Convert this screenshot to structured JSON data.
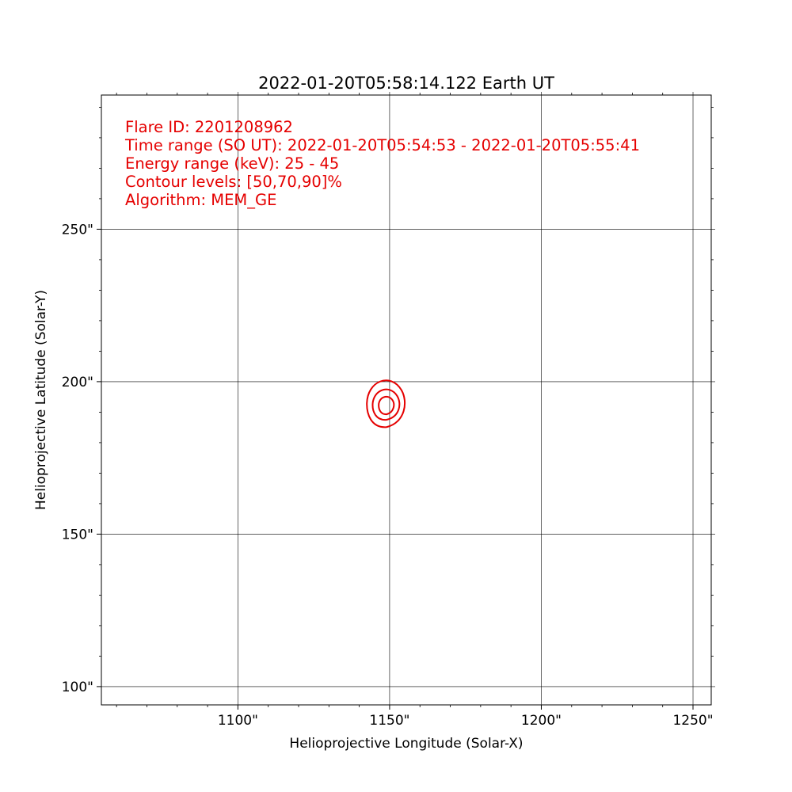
{
  "chart_data": {
    "type": "contour",
    "title": "2022-01-20T05:58:14.122   Earth UT",
    "xlabel": "Helioprojective Longitude (Solar-X)",
    "ylabel": "Helioprojective Latitude (Solar-Y)",
    "xlim": [
      1055,
      1256
    ],
    "ylim": [
      94,
      294
    ],
    "x_ticks": [
      {
        "value": 1100,
        "label": "1100\""
      },
      {
        "value": 1150,
        "label": "1150\""
      },
      {
        "value": 1200,
        "label": "1200\""
      },
      {
        "value": 1250,
        "label": "1250\""
      }
    ],
    "y_ticks": [
      {
        "value": 100,
        "label": "100\""
      },
      {
        "value": 150,
        "label": "150\""
      },
      {
        "value": 200,
        "label": "200\""
      },
      {
        "value": 250,
        "label": "250\""
      }
    ],
    "x_minor_ticks": [
      1060,
      1070,
      1080,
      1090,
      1110,
      1120,
      1130,
      1140,
      1160,
      1170,
      1180,
      1190,
      1210,
      1220,
      1230,
      1240
    ],
    "y_minor_ticks": [
      110,
      120,
      130,
      140,
      160,
      170,
      180,
      190,
      210,
      220,
      230,
      240,
      260,
      270,
      280,
      290
    ],
    "grid": true,
    "annotation_lines": [
      "Flare ID: 2201208962",
      "Time range (SO UT): 2022-01-20T05:54:53 - 2022-01-20T05:55:41",
      "Energy range (keV): 25 - 45",
      "Contour levels: [50,70,90]%",
      "Algorithm: MEM_GE"
    ],
    "contour_color": "#e50000",
    "contours": [
      {
        "level": "50%",
        "center": [
          1149.0,
          192.6
        ],
        "rx": 6.5,
        "ry_top": 8.5,
        "ry_bottom": 7.5
      },
      {
        "level": "70%",
        "center": [
          1149.0,
          192.3
        ],
        "rx": 4.6,
        "ry_top": 5.6,
        "ry_bottom": 4.8
      },
      {
        "level": "90%",
        "center": [
          1149.0,
          192.3
        ],
        "rx": 2.6,
        "ry_top": 3.0,
        "ry_bottom": 3.0
      }
    ]
  }
}
